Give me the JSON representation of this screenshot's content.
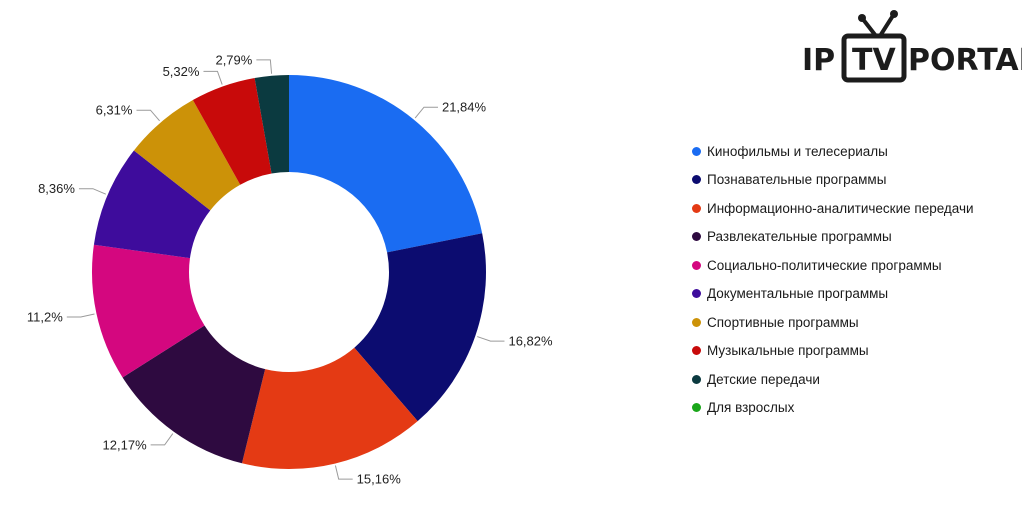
{
  "brand": {
    "logo_left": "IP",
    "logo_box": "TV",
    "logo_right": "PORTAL"
  },
  "chart_data": {
    "type": "pie",
    "variant": "donut",
    "title": "",
    "slices": [
      {
        "label": "Кинофильмы и телесериалы",
        "value": 21.84,
        "value_label": "21,84%",
        "color": "#1a6cf2"
      },
      {
        "label": "Познавательные программы",
        "value": 16.82,
        "value_label": "16,82%",
        "color": "#0c0c70"
      },
      {
        "label": "Информационно-аналитические передачи",
        "value": 15.16,
        "value_label": "15,16%",
        "color": "#e43a14"
      },
      {
        "label": "Развлекательные программы",
        "value": 12.17,
        "value_label": "12,17%",
        "color": "#2e0a40"
      },
      {
        "label": "Социально-политические программы",
        "value": 11.2,
        "value_label": "11,2%",
        "color": "#d4077f"
      },
      {
        "label": "Документальные программы",
        "value": 8.36,
        "value_label": "8,36%",
        "color": "#3e0c9c"
      },
      {
        "label": "Спортивные программы",
        "value": 6.31,
        "value_label": "6,31%",
        "color": "#cc9208"
      },
      {
        "label": "Музыкальные программы",
        "value": 5.32,
        "value_label": "5,32%",
        "color": "#c80a0a"
      },
      {
        "label": "Детские передачи",
        "value": 2.79,
        "value_label": "2,79%",
        "color": "#0b3a40"
      },
      {
        "label": "Для взрослых",
        "value": 0,
        "value_label": "",
        "color": "#1aa61a"
      }
    ],
    "legend_position": "right"
  }
}
